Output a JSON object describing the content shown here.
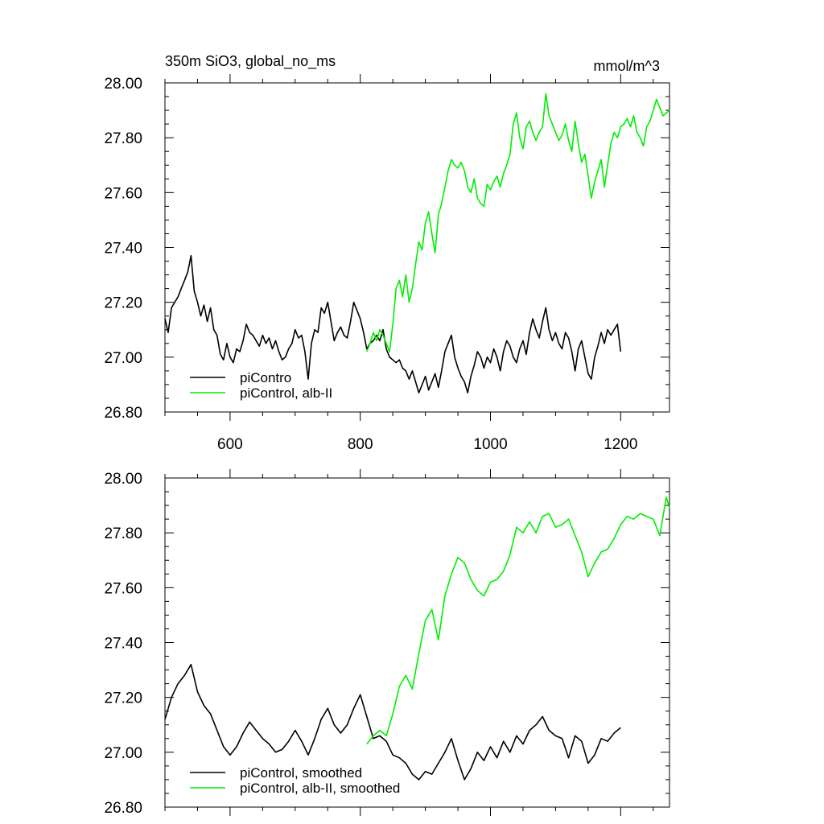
{
  "figure": {
    "title_left": "350m SiO3, global_no_ms",
    "title_right": "mmol/m^3"
  },
  "colors": {
    "control": "#000000",
    "experiment": "#00ee00"
  },
  "chart_data": [
    {
      "type": "line",
      "title": "350m SiO3, global_no_ms",
      "units": "mmol/m^3",
      "xlim": [
        500,
        1275
      ],
      "ylim": [
        26.8,
        28.0
      ],
      "xticks": [
        600,
        800,
        1000,
        1200
      ],
      "xtick_labels": [
        "600",
        "800",
        "1000",
        "1200"
      ],
      "yticks": [
        26.8,
        27.0,
        27.2,
        27.4,
        27.6,
        27.8,
        28.0
      ],
      "ytick_labels": [
        "26.80",
        "27.00",
        "27.20",
        "27.40",
        "27.60",
        "27.80",
        "28.00"
      ],
      "legend": "bottom-left",
      "grid": false,
      "series": [
        {
          "name": "piContro",
          "color": "#000000",
          "x": [
            500,
            505,
            510,
            515,
            520,
            525,
            530,
            535,
            540,
            545,
            550,
            555,
            560,
            565,
            570,
            575,
            580,
            585,
            590,
            595,
            600,
            605,
            610,
            615,
            620,
            625,
            630,
            635,
            640,
            645,
            650,
            655,
            660,
            665,
            670,
            675,
            680,
            685,
            690,
            695,
            700,
            705,
            710,
            715,
            720,
            725,
            730,
            735,
            740,
            745,
            750,
            755,
            760,
            765,
            770,
            775,
            780,
            785,
            790,
            795,
            800,
            805,
            810,
            815,
            820,
            825,
            830,
            835,
            840,
            845,
            850,
            855,
            860,
            865,
            870,
            875,
            880,
            885,
            890,
            895,
            900,
            905,
            910,
            915,
            920,
            925,
            930,
            935,
            940,
            945,
            950,
            955,
            960,
            965,
            970,
            975,
            980,
            985,
            990,
            995,
            1000,
            1005,
            1010,
            1015,
            1020,
            1025,
            1030,
            1035,
            1040,
            1045,
            1050,
            1055,
            1060,
            1065,
            1070,
            1075,
            1080,
            1085,
            1090,
            1095,
            1100,
            1105,
            1110,
            1115,
            1120,
            1125,
            1130,
            1135,
            1140,
            1145,
            1150,
            1155,
            1160,
            1165,
            1170,
            1175,
            1180,
            1185,
            1190,
            1195,
            1200
          ],
          "y": [
            27.14,
            27.09,
            27.18,
            27.2,
            27.22,
            27.25,
            27.28,
            27.31,
            27.37,
            27.24,
            27.2,
            27.15,
            27.19,
            27.13,
            27.18,
            27.1,
            27.08,
            27.01,
            26.99,
            27.05,
            27.0,
            26.98,
            27.03,
            27.02,
            27.06,
            27.12,
            27.09,
            27.08,
            27.06,
            27.04,
            27.08,
            27.05,
            27.07,
            27.03,
            27.06,
            27.02,
            26.99,
            27.0,
            27.03,
            27.05,
            27.1,
            27.07,
            27.08,
            27.02,
            26.92,
            27.05,
            27.1,
            27.09,
            27.18,
            27.16,
            27.2,
            27.13,
            27.06,
            27.09,
            27.11,
            27.08,
            27.07,
            27.13,
            27.2,
            27.17,
            27.14,
            27.09,
            27.03,
            27.05,
            27.06,
            27.08,
            27.06,
            27.1,
            27.03,
            27.0,
            26.99,
            26.98,
            26.99,
            26.96,
            26.95,
            26.92,
            26.95,
            26.91,
            26.87,
            26.9,
            26.93,
            26.88,
            26.91,
            26.94,
            26.89,
            26.95,
            27.02,
            27.05,
            27.08,
            27.0,
            26.96,
            26.93,
            26.91,
            26.87,
            26.93,
            26.97,
            27.02,
            27.0,
            26.96,
            27.0,
            26.98,
            27.03,
            27.0,
            26.95,
            27.02,
            27.06,
            27.04,
            27.0,
            26.98,
            27.03,
            27.06,
            27.01,
            27.09,
            27.14,
            27.1,
            27.07,
            27.13,
            27.18,
            27.1,
            27.06,
            27.09,
            27.05,
            27.03,
            27.09,
            27.07,
            27.02,
            26.95,
            27.03,
            27.06,
            27.0,
            26.94,
            26.92,
            27.0,
            27.04,
            27.09,
            27.05,
            27.1,
            27.08,
            27.1,
            27.12,
            27.02
          ]
        },
        {
          "name": "piControl, alb-II",
          "color": "#00ee00",
          "x": [
            810,
            815,
            820,
            825,
            830,
            835,
            840,
            845,
            850,
            855,
            860,
            865,
            870,
            875,
            880,
            885,
            890,
            895,
            900,
            905,
            910,
            915,
            920,
            925,
            930,
            935,
            940,
            945,
            950,
            955,
            960,
            965,
            970,
            975,
            980,
            985,
            990,
            995,
            1000,
            1005,
            1010,
            1015,
            1020,
            1025,
            1030,
            1035,
            1040,
            1045,
            1050,
            1055,
            1060,
            1065,
            1070,
            1075,
            1080,
            1085,
            1090,
            1095,
            1100,
            1105,
            1110,
            1115,
            1120,
            1125,
            1130,
            1135,
            1140,
            1145,
            1150,
            1155,
            1160,
            1165,
            1170,
            1175,
            1180,
            1185,
            1190,
            1195,
            1200,
            1205,
            1210,
            1215,
            1220,
            1225,
            1230,
            1235,
            1240,
            1245,
            1250,
            1255,
            1260,
            1265,
            1270,
            1275
          ],
          "y": [
            27.02,
            27.05,
            27.09,
            27.06,
            27.1,
            27.08,
            27.05,
            27.02,
            27.12,
            27.25,
            27.28,
            27.22,
            27.3,
            27.2,
            27.25,
            27.34,
            27.42,
            27.39,
            27.49,
            27.53,
            27.45,
            27.38,
            27.52,
            27.56,
            27.62,
            27.68,
            27.72,
            27.7,
            27.69,
            27.71,
            27.68,
            27.62,
            27.6,
            27.65,
            27.58,
            27.56,
            27.55,
            27.63,
            27.61,
            27.64,
            27.66,
            27.62,
            27.67,
            27.7,
            27.74,
            27.85,
            27.89,
            27.8,
            27.76,
            27.84,
            27.86,
            27.82,
            27.79,
            27.82,
            27.84,
            27.96,
            27.88,
            27.85,
            27.82,
            27.79,
            27.81,
            27.85,
            27.79,
            27.75,
            27.86,
            27.78,
            27.71,
            27.74,
            27.66,
            27.58,
            27.64,
            27.68,
            27.72,
            27.62,
            27.7,
            27.78,
            27.82,
            27.8,
            27.84,
            27.85,
            27.87,
            27.84,
            27.88,
            27.82,
            27.8,
            27.77,
            27.84,
            27.86,
            27.9,
            27.94,
            27.91,
            27.88,
            27.89,
            27.9
          ]
        }
      ]
    },
    {
      "type": "line",
      "xlim": [
        500,
        1275
      ],
      "ylim": [
        26.8,
        28.0
      ],
      "xticks": [
        600,
        800,
        1000,
        1200
      ],
      "yticks": [
        26.8,
        27.0,
        27.2,
        27.4,
        27.6,
        27.8,
        28.0
      ],
      "ytick_labels": [
        "26.80",
        "27.00",
        "27.20",
        "27.40",
        "27.60",
        "27.80",
        "28.00"
      ],
      "legend": "bottom-left",
      "grid": false,
      "series": [
        {
          "name": "piControl, smoothed",
          "color": "#000000",
          "x": [
            500,
            510,
            520,
            530,
            540,
            550,
            560,
            570,
            580,
            590,
            600,
            610,
            620,
            630,
            640,
            650,
            660,
            670,
            680,
            690,
            700,
            710,
            720,
            730,
            740,
            750,
            760,
            770,
            780,
            790,
            800,
            810,
            820,
            830,
            840,
            850,
            860,
            870,
            880,
            890,
            900,
            910,
            920,
            930,
            940,
            950,
            960,
            970,
            980,
            990,
            1000,
            1010,
            1020,
            1030,
            1040,
            1050,
            1060,
            1070,
            1080,
            1090,
            1100,
            1110,
            1120,
            1130,
            1140,
            1150,
            1160,
            1170,
            1180,
            1190,
            1200
          ],
          "y": [
            27.12,
            27.2,
            27.25,
            27.28,
            27.32,
            27.22,
            27.17,
            27.14,
            27.08,
            27.02,
            26.99,
            27.02,
            27.07,
            27.11,
            27.08,
            27.05,
            27.03,
            27.0,
            27.01,
            27.04,
            27.08,
            27.04,
            26.99,
            27.05,
            27.12,
            27.16,
            27.1,
            27.07,
            27.1,
            27.16,
            27.21,
            27.13,
            27.05,
            27.06,
            27.04,
            26.99,
            26.98,
            26.96,
            26.92,
            26.9,
            26.93,
            26.92,
            26.96,
            27.0,
            27.05,
            26.97,
            26.9,
            26.94,
            27.0,
            26.97,
            27.02,
            26.98,
            27.04,
            27.0,
            27.06,
            27.03,
            27.08,
            27.1,
            27.13,
            27.08,
            27.06,
            27.05,
            26.98,
            27.06,
            27.04,
            26.96,
            26.99,
            27.05,
            27.04,
            27.07,
            27.09
          ]
        },
        {
          "name": "piControl, alb-II, smoothed",
          "color": "#00ee00",
          "x": [
            810,
            820,
            830,
            840,
            850,
            860,
            870,
            880,
            890,
            900,
            910,
            920,
            930,
            940,
            950,
            960,
            970,
            980,
            990,
            1000,
            1010,
            1020,
            1030,
            1040,
            1050,
            1060,
            1070,
            1080,
            1090,
            1100,
            1110,
            1120,
            1130,
            1140,
            1150,
            1160,
            1170,
            1180,
            1190,
            1200,
            1210,
            1220,
            1230,
            1240,
            1250,
            1260,
            1270,
            1275
          ],
          "y": [
            27.03,
            27.06,
            27.08,
            27.06,
            27.14,
            27.24,
            27.28,
            27.23,
            27.36,
            27.48,
            27.52,
            27.41,
            27.57,
            27.65,
            27.71,
            27.69,
            27.63,
            27.59,
            27.57,
            27.62,
            27.63,
            27.66,
            27.72,
            27.82,
            27.8,
            27.84,
            27.8,
            27.86,
            27.87,
            27.82,
            27.83,
            27.85,
            27.79,
            27.73,
            27.64,
            27.69,
            27.73,
            27.74,
            27.78,
            27.83,
            27.86,
            27.85,
            27.87,
            27.86,
            27.85,
            27.79,
            27.93,
            27.89
          ]
        }
      ]
    }
  ]
}
